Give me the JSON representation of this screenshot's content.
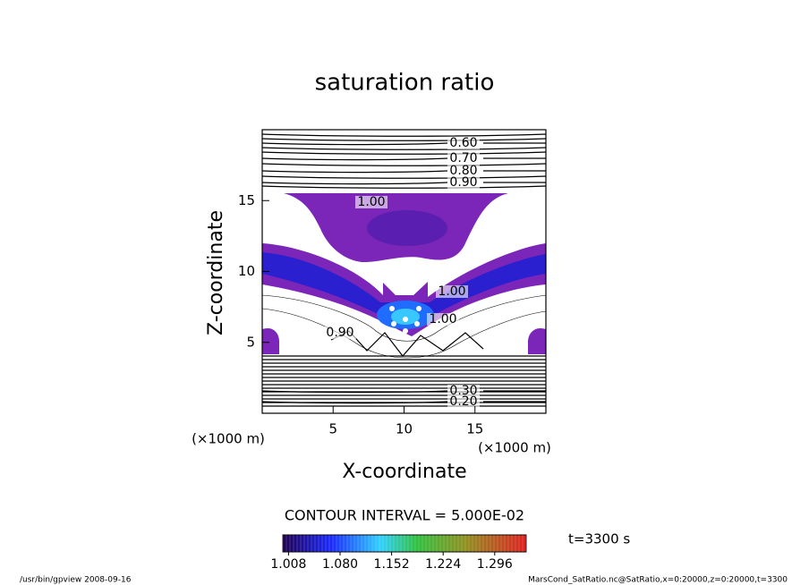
{
  "chart_data": {
    "type": "contour",
    "title": "saturation ratio",
    "x_label": "X-coordinate",
    "y_label": "Z-coordinate",
    "x_unit": "(×1000 m)",
    "y_unit": "(×1000 m)",
    "xlim": [
      0,
      20
    ],
    "ylim": [
      0,
      20
    ],
    "xticks": [
      5,
      10,
      15
    ],
    "yticks": [
      5,
      10,
      15
    ],
    "fill_color": "#7b26b8",
    "contour_labels": [
      {
        "value": 0.6,
        "label": "0.60"
      },
      {
        "value": 0.7,
        "label": "0.70"
      },
      {
        "value": 0.8,
        "label": "0.80"
      },
      {
        "value": 0.9,
        "label": "0.90"
      },
      {
        "value": 1.0,
        "label": "1.00"
      },
      {
        "value": 1.0,
        "label": "1.00"
      },
      {
        "value": 1.0,
        "label": "1.00"
      },
      {
        "value": 0.9,
        "label": "0.90"
      },
      {
        "value": 0.3,
        "label": "0.30"
      },
      {
        "value": 0.2,
        "label": "0.20"
      }
    ],
    "contour_interval": "CONTOUR INTERVAL = 5.000E-02",
    "colorbar_lim": [
      1.0,
      1.34
    ],
    "colorbar_ticks": [
      1.008,
      {
        "value": 1.08,
        "label": "1.080"
      },
      1.152,
      1.224,
      1.296
    ],
    "time_label": "t=3300 s",
    "footer_left": "/usr/bin/gpview   2008-09-16",
    "footer_right": "MarsCond_SatRatio.nc@SatRatio,x=0:20000,z=0:20000,t=3300"
  }
}
